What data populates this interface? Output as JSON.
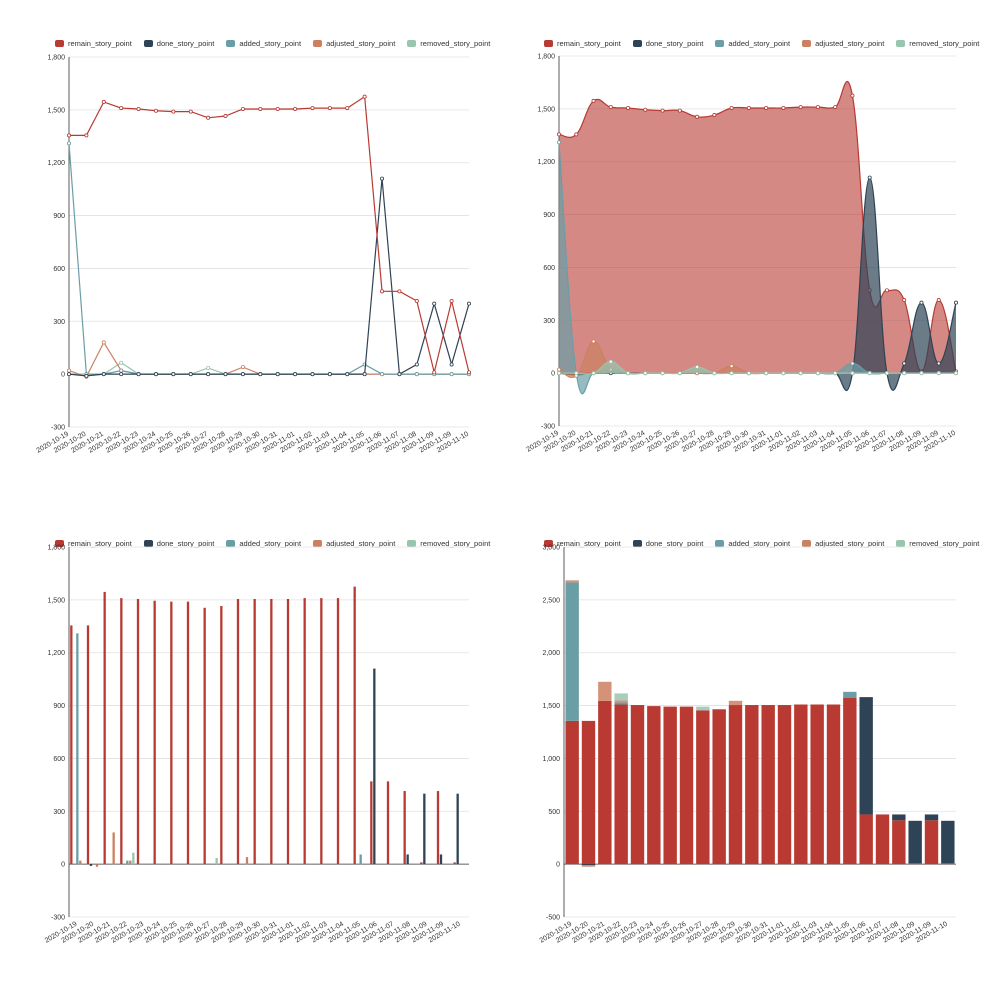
{
  "series_meta": [
    {
      "key": "remain",
      "name": "remain_story_point",
      "color": "#b83a33"
    },
    {
      "key": "done",
      "name": "done_story_point",
      "color": "#2e4355"
    },
    {
      "key": "added",
      "name": "added_story_point",
      "color": "#6a9ea6"
    },
    {
      "key": "adjusted",
      "name": "adjusted_story_point",
      "color": "#cc8062"
    },
    {
      "key": "removed",
      "name": "removed_story_point",
      "color": "#97c5ae"
    }
  ],
  "chart_data": [
    {
      "id": "tl",
      "type": "line",
      "smooth": false,
      "ylim": [
        -300,
        1800
      ],
      "yticks": [
        -300,
        0,
        300,
        600,
        900,
        1200,
        1500,
        1800
      ],
      "legend_position": "top-left",
      "grid": true
    },
    {
      "id": "tr",
      "type": "area",
      "smooth": true,
      "ylim": [
        -300,
        1800
      ],
      "yticks": [
        -300,
        0,
        300,
        600,
        900,
        1200,
        1500,
        1800
      ],
      "legend_position": "top-left",
      "grid": true
    },
    {
      "id": "bl",
      "type": "bar",
      "stacked": false,
      "ylim": [
        -300,
        1800
      ],
      "yticks": [
        -300,
        0,
        300,
        600,
        900,
        1200,
        1500,
        1800
      ],
      "legend_position": "top-left",
      "grid": true
    },
    {
      "id": "br",
      "type": "bar",
      "stacked": true,
      "ylim": [
        -500,
        3000
      ],
      "yticks": [
        -500,
        0,
        500,
        1000,
        1500,
        2000,
        2500,
        3000
      ],
      "legend_position": "top-left",
      "grid": true
    }
  ],
  "shared_data": {
    "categories": [
      "2020-10-19",
      "2020-10-20",
      "2020-10-21",
      "2020-10-22",
      "2020-10-23",
      "2020-10-24",
      "2020-10-25",
      "2020-10-26",
      "2020-10-27",
      "2020-10-28",
      "2020-10-29",
      "2020-10-30",
      "2020-10-31",
      "2020-11-01",
      "2020-11-02",
      "2020-11-03",
      "2020-11-04",
      "2020-11-05",
      "2020-11-06",
      "2020-11-07",
      "2020-11-08",
      "2020-11-09",
      "2020-11-09",
      "2020-11-10"
    ],
    "series": {
      "remain": [
        1355,
        1355,
        1545,
        1510,
        1505,
        1495,
        1490,
        1490,
        1455,
        1465,
        1505,
        1505,
        1505,
        1505,
        1510,
        1510,
        1510,
        1575,
        470,
        470,
        415,
        10,
        415,
        10
      ],
      "done": [
        0,
        -10,
        0,
        0,
        0,
        0,
        0,
        0,
        0,
        0,
        0,
        0,
        0,
        0,
        0,
        0,
        0,
        0,
        1110,
        0,
        55,
        400,
        55,
        400
      ],
      "added": [
        1310,
        0,
        0,
        20,
        0,
        0,
        0,
        0,
        0,
        0,
        0,
        0,
        0,
        0,
        0,
        0,
        0,
        55,
        0,
        0,
        0,
        0,
        0,
        0
      ],
      "adjusted": [
        20,
        -15,
        180,
        20,
        0,
        0,
        0,
        0,
        0,
        0,
        40,
        0,
        0,
        0,
        0,
        0,
        0,
        0,
        0,
        0,
        0,
        0,
        0,
        0
      ],
      "removed": [
        0,
        0,
        0,
        65,
        0,
        0,
        0,
        0,
        35,
        0,
        0,
        0,
        0,
        0,
        0,
        0,
        0,
        0,
        0,
        0,
        0,
        0,
        0,
        0
      ]
    }
  }
}
